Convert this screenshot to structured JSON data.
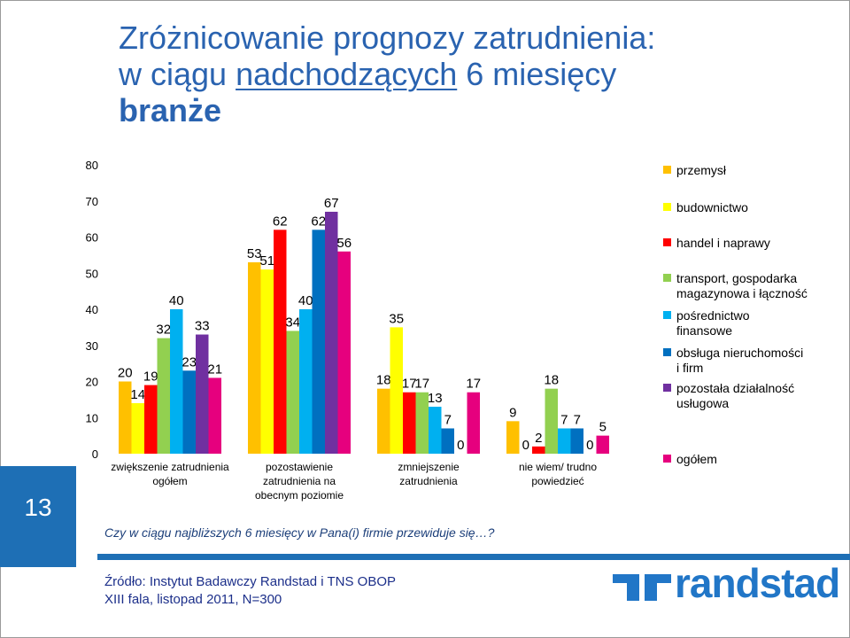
{
  "slide": {
    "title_line1": "Zróżnicowanie prognozy zatrudnienia:",
    "title_line2_pre": "w ciągu ",
    "title_line2_link": "nadchodzących",
    "title_line2_post": " 6 miesięcy",
    "title_line3": "branże",
    "slide_number": "13",
    "question": "Czy w ciągu najbliższych 6 miesięcy w Pana(i) firmie przewiduje się…?",
    "source_line1": "Źródło: Instytut Badawczy Randstad i TNS OBOP",
    "source_line2": "XIII fala, listopad 2011, N=300",
    "logo_text": "randstad",
    "logo_icon": "randstad-logo-icon",
    "accent_color": "#1e6fb5"
  },
  "chart_data": {
    "type": "bar",
    "title": "",
    "xlabel": "",
    "ylabel": "",
    "ylim": [
      0,
      80
    ],
    "yticks": [
      0,
      10,
      20,
      30,
      40,
      50,
      60,
      70,
      80
    ],
    "grid": false,
    "legend_position": "right",
    "categories": [
      [
        "zwiększenie zatrudnienia",
        "ogółem"
      ],
      [
        "pozostawienie",
        "zatrudnienia na",
        "obecnym poziomie"
      ],
      [
        "zmniejszenie",
        "zatrudnienia"
      ],
      [
        "nie wiem/ trudno",
        "powiedzieć"
      ]
    ],
    "series": [
      {
        "name": "przemysł",
        "legend_lines": [
          "przemysł"
        ],
        "color": "#ffc000",
        "values": [
          20,
          53,
          18,
          9
        ]
      },
      {
        "name": "budownictwo",
        "legend_lines": [
          "budownictwo"
        ],
        "color": "#ffff00",
        "values": [
          14,
          51,
          35,
          0
        ]
      },
      {
        "name": "handel i naprawy",
        "legend_lines": [
          "handel i naprawy"
        ],
        "color": "#ff0000",
        "values": [
          19,
          62,
          17,
          2
        ]
      },
      {
        "name": "transport, gospodarka magazynowa i łączność",
        "legend_lines": [
          "transport, gospodarka",
          "magazynowa i łączność"
        ],
        "color": "#92d050",
        "values": [
          32,
          34,
          17,
          18
        ]
      },
      {
        "name": "pośrednictwo finansowe",
        "legend_lines": [
          "pośrednictwo",
          "finansowe"
        ],
        "color": "#00b0f0",
        "values": [
          40,
          40,
          13,
          7
        ]
      },
      {
        "name": "obsługa nieruchomości i firm",
        "legend_lines": [
          "obsługa nieruchomości",
          "i firm"
        ],
        "color": "#0070c0",
        "values": [
          23,
          62,
          7,
          7
        ]
      },
      {
        "name": "pozostała działalność usługowa",
        "legend_lines": [
          "pozostała działalność",
          "usługowa"
        ],
        "color": "#7030a0",
        "values": [
          33,
          67,
          0,
          0
        ]
      },
      {
        "name": "ogółem",
        "legend_lines": [
          "ogółem"
        ],
        "color": "#e6007e",
        "values": [
          21,
          56,
          17,
          5
        ]
      }
    ]
  }
}
